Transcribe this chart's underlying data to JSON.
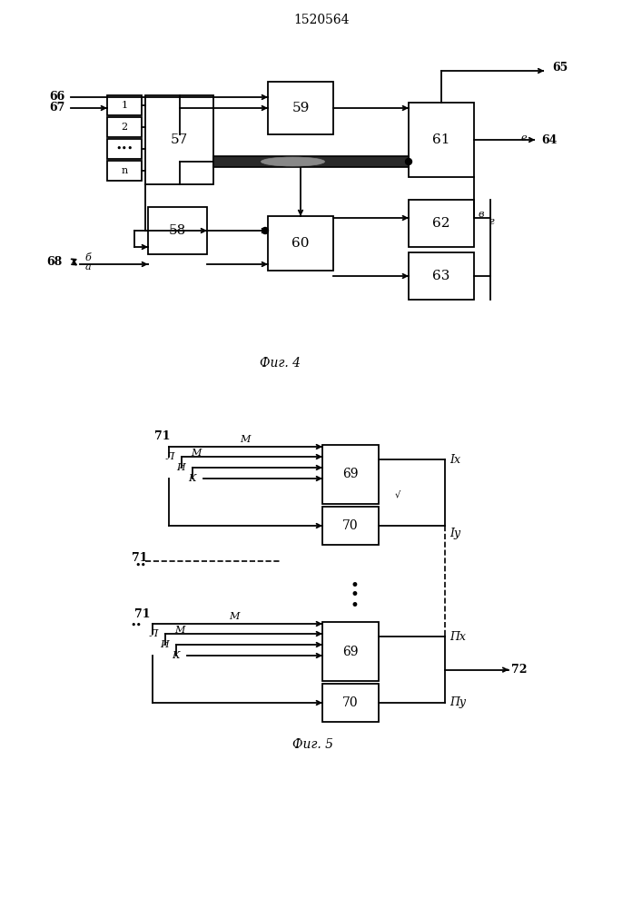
{
  "title": "1520564",
  "fig4_caption": "Фиг. 4",
  "fig5_caption": "Фиг. 5",
  "bg_color": "#ffffff"
}
